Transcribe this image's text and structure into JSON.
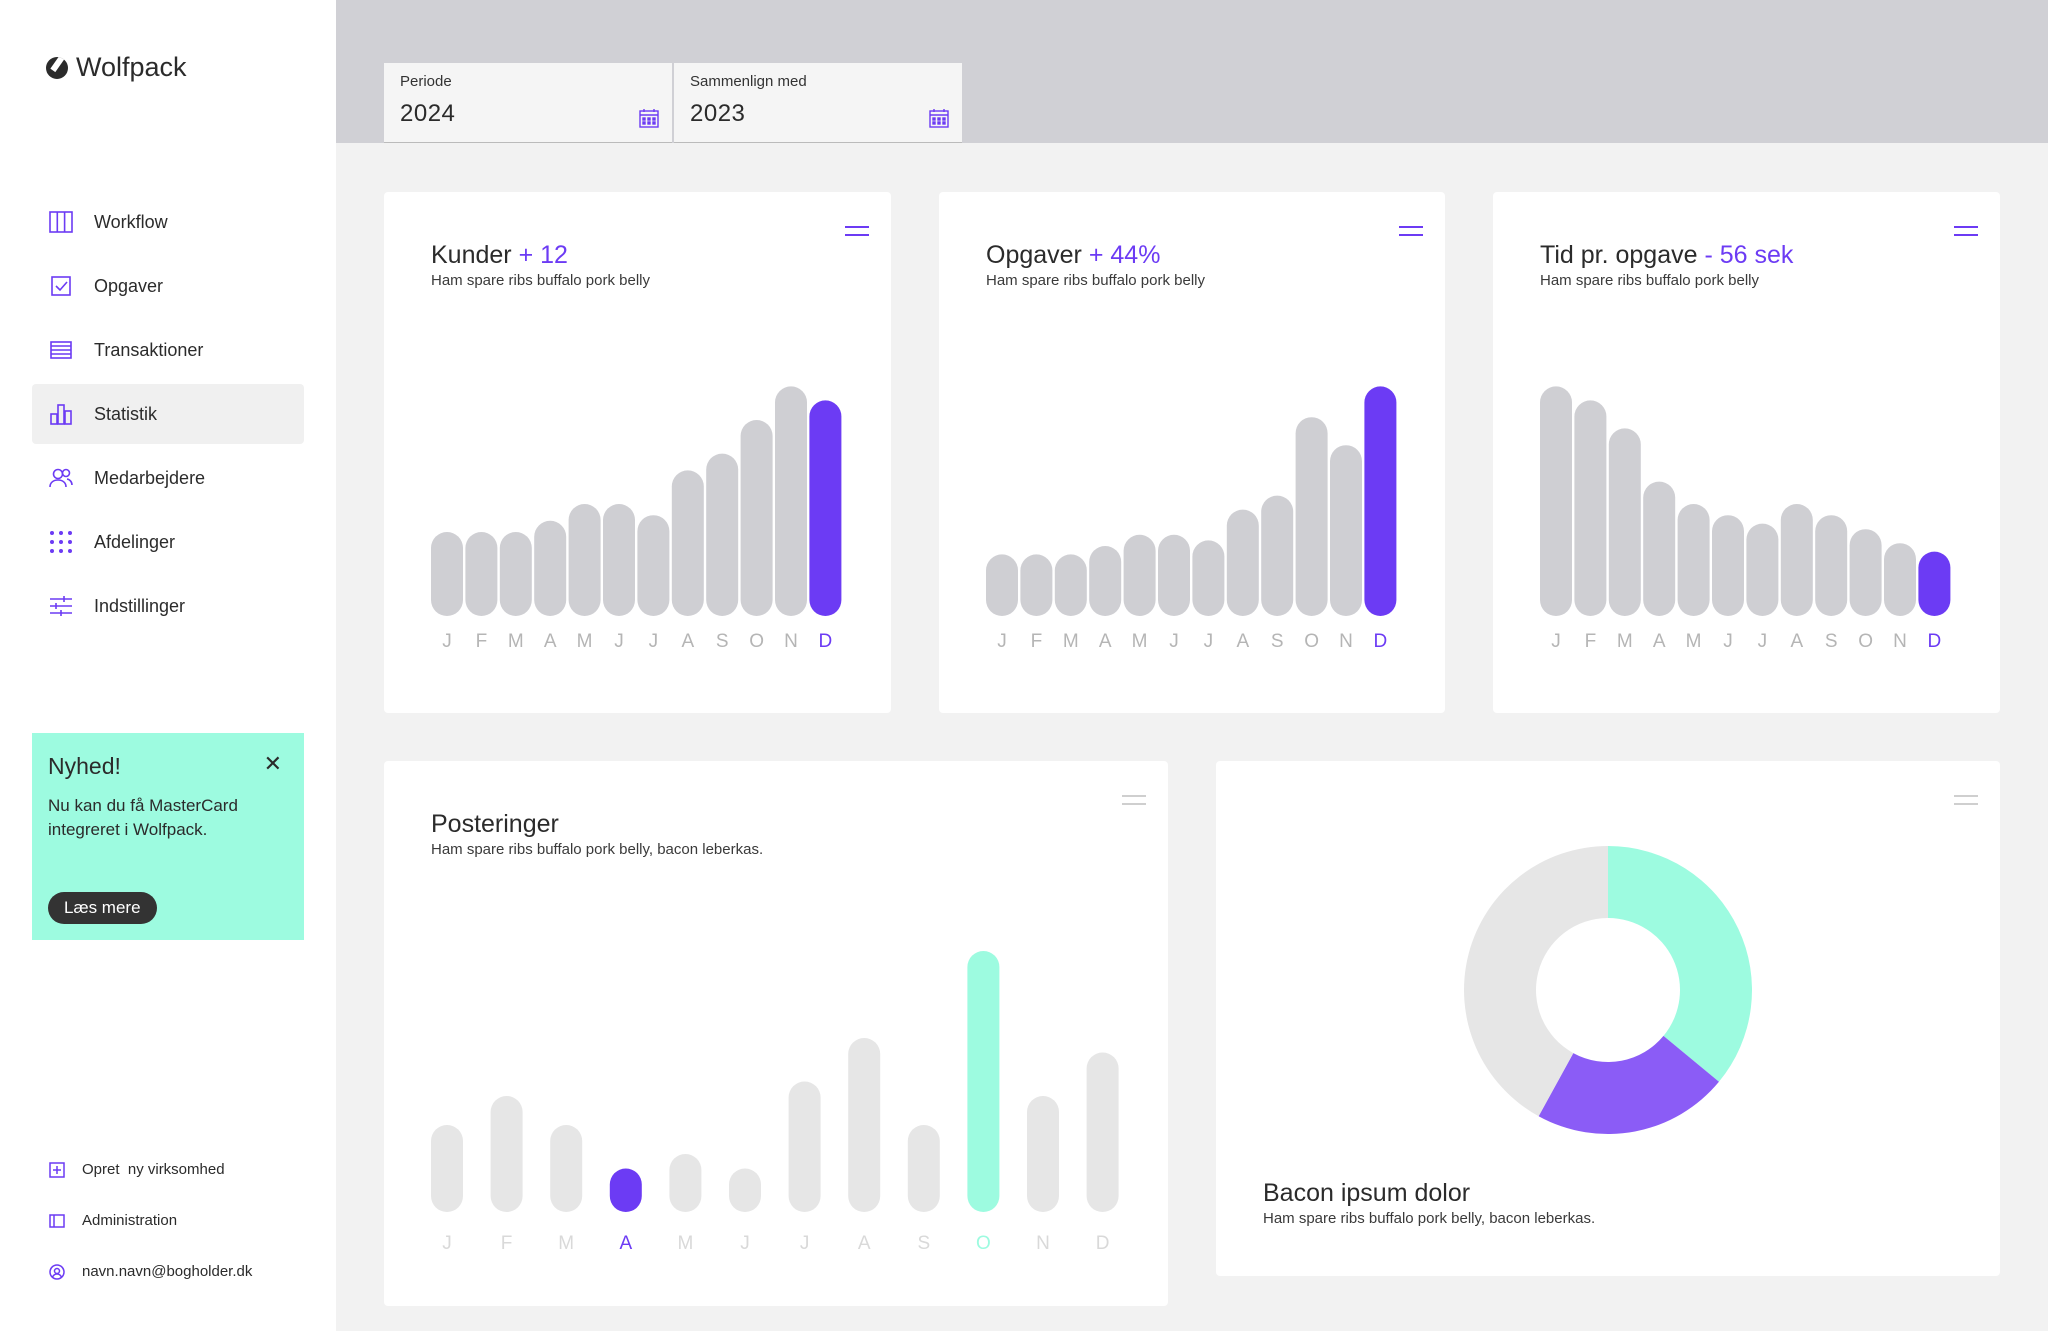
{
  "app": {
    "name": "Wolfpack"
  },
  "sidebar": {
    "items": [
      {
        "label": "Workflow",
        "icon": "columns-icon",
        "active": false
      },
      {
        "label": "Opgaver",
        "icon": "checkbox-icon",
        "active": false
      },
      {
        "label": "Transaktioner",
        "icon": "list-icon",
        "active": false
      },
      {
        "label": "Statistik",
        "icon": "bar-chart-icon",
        "active": true
      },
      {
        "label": "Medarbejdere",
        "icon": "users-icon",
        "active": false
      },
      {
        "label": "Afdelinger",
        "icon": "grid-dots-icon",
        "active": false
      },
      {
        "label": "Indstillinger",
        "icon": "sliders-icon",
        "active": false
      }
    ],
    "news": {
      "title": "Nyhed!",
      "text": "Nu kan du få MasterCard integreret i Wolfpack.",
      "button": "Læs mere",
      "close": "✕"
    },
    "bottom": [
      {
        "label": "Opret  ny virksomhed",
        "icon": "plus-square-icon"
      },
      {
        "label": "Administration",
        "icon": "admin-icon"
      },
      {
        "label": "navn.navn@bogholder.dk",
        "icon": "user-circle-icon"
      }
    ]
  },
  "filters": {
    "period": {
      "label": "Periode",
      "value": "2024"
    },
    "compare": {
      "label": "Sammenlign med",
      "value": "2023"
    }
  },
  "colors": {
    "accent": "#6c3bf4",
    "mint": "#9dfbe0",
    "bar": "#cfcfd3",
    "bar_light": "#e6e6e6",
    "donut_purple": "#8b5cf6"
  },
  "chart_data": [
    {
      "type": "bar",
      "title": "Kunder",
      "delta": "+ 12",
      "subtitle": "Ham spare ribs buffalo pork belly",
      "categories": [
        "J",
        "F",
        "M",
        "A",
        "M",
        "J",
        "J",
        "A",
        "S",
        "O",
        "N",
        "D"
      ],
      "values": [
        30,
        30,
        30,
        34,
        40,
        40,
        36,
        52,
        58,
        70,
        82,
        77
      ],
      "highlight": 11,
      "ylim": [
        0,
        100
      ]
    },
    {
      "type": "bar",
      "title": "Opgaver",
      "delta": "+ 44%",
      "subtitle": "Ham spare ribs buffalo pork belly",
      "categories": [
        "J",
        "F",
        "M",
        "A",
        "M",
        "J",
        "J",
        "A",
        "S",
        "O",
        "N",
        "D"
      ],
      "values": [
        22,
        22,
        22,
        25,
        29,
        29,
        27,
        38,
        43,
        71,
        61,
        82
      ],
      "highlight": 11,
      "ylim": [
        0,
        100
      ]
    },
    {
      "type": "bar",
      "title": "Tid pr. opgave",
      "delta": "- 56 sek",
      "subtitle": "Ham spare ribs buffalo pork belly",
      "categories": [
        "J",
        "F",
        "M",
        "A",
        "M",
        "J",
        "J",
        "A",
        "S",
        "O",
        "N",
        "D"
      ],
      "values": [
        82,
        77,
        67,
        48,
        40,
        36,
        33,
        40,
        36,
        31,
        26,
        23
      ],
      "highlight": 11,
      "ylim": [
        0,
        100
      ]
    },
    {
      "type": "bar",
      "title": "Posteringer",
      "subtitle": "Ham spare ribs buffalo pork belly, bacon leberkas.",
      "categories": [
        "J",
        "F",
        "M",
        "A",
        "M",
        "J",
        "J",
        "A",
        "S",
        "O",
        "N",
        "D"
      ],
      "values": [
        30,
        40,
        30,
        15,
        20,
        15,
        45,
        60,
        30,
        90,
        40,
        55
      ],
      "highlight_purple": 3,
      "highlight_mint": 9,
      "ylim": [
        0,
        100
      ]
    },
    {
      "type": "pie",
      "title": "Bacon ipsum dolor",
      "subtitle": "Ham spare ribs buffalo pork belly, bacon leberkas.",
      "slices": [
        {
          "value": 36,
          "color": "#9dfbe0"
        },
        {
          "value": 22,
          "color": "#8b5cf6"
        },
        {
          "value": 42,
          "color": "#e6e6e6"
        }
      ]
    }
  ]
}
